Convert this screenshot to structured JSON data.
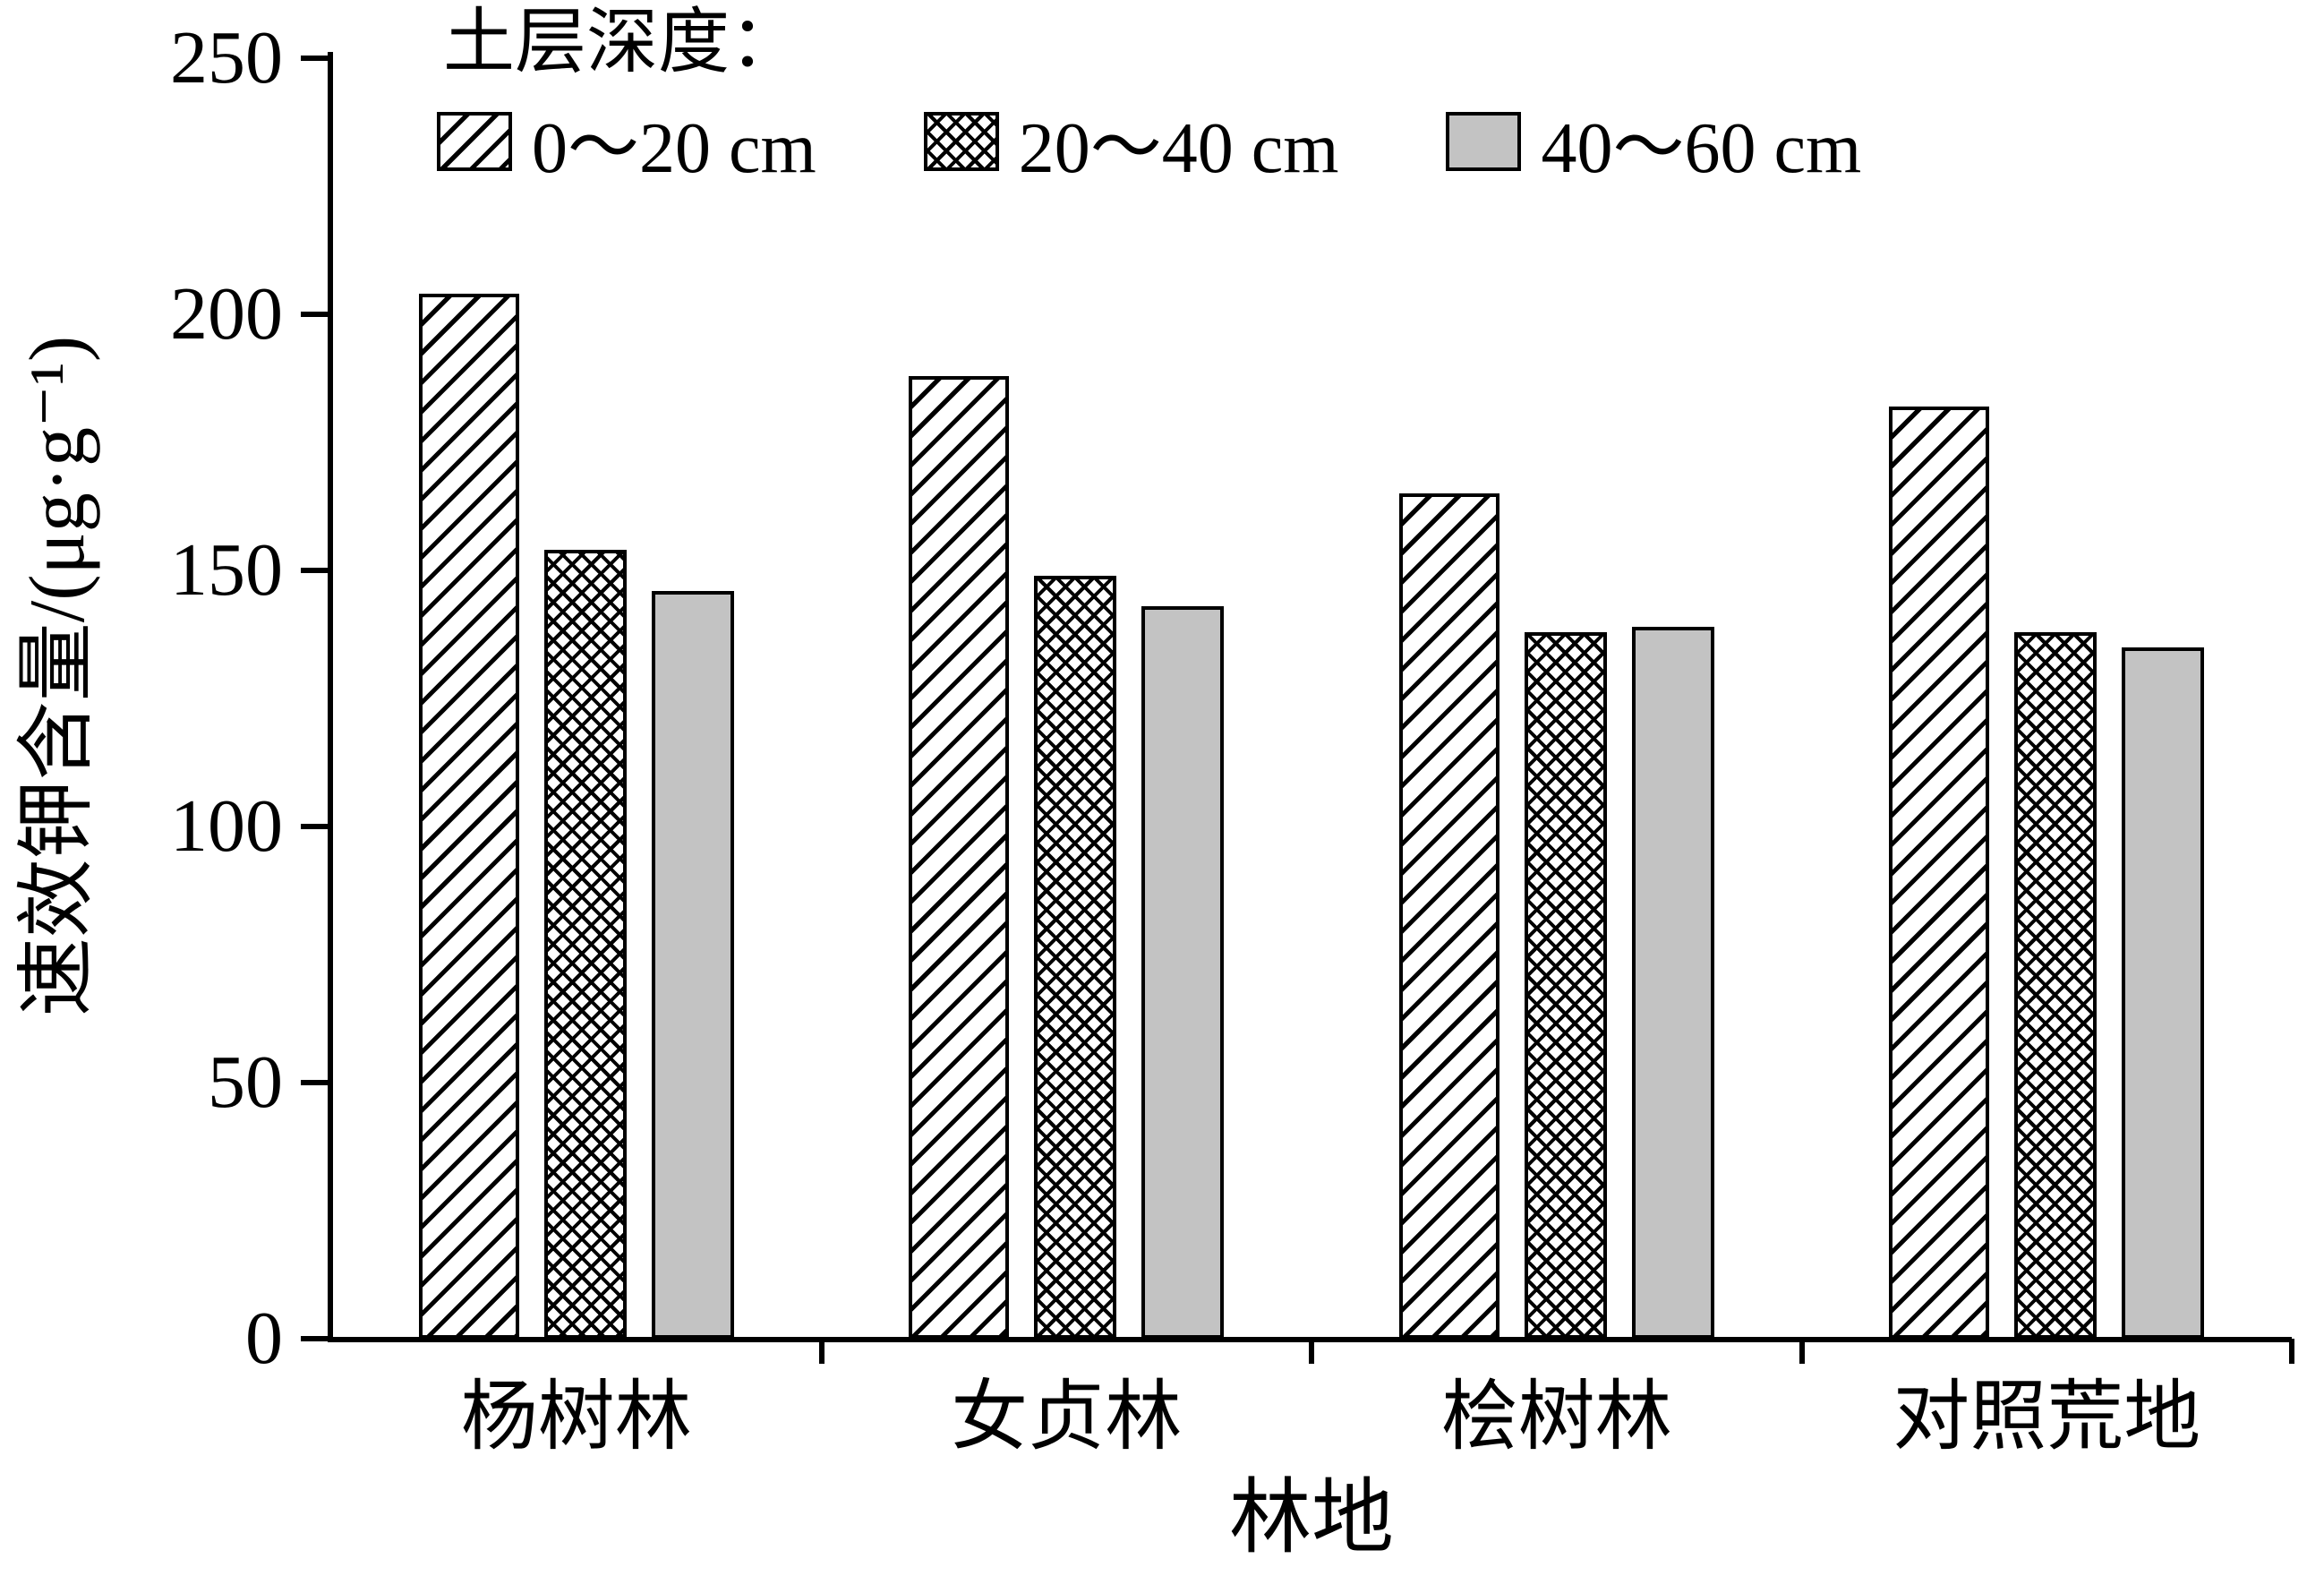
{
  "chart_data": {
    "type": "bar",
    "title": "",
    "legend_title": "土层深度：",
    "legend_position": "top",
    "grid": false,
    "categories": [
      "杨树林",
      "女贞林",
      "桧树林",
      "对照荒地"
    ],
    "series": [
      {
        "name": "0～20 cm",
        "pattern": "diagonal",
        "values": [
          204,
          188,
          165,
          182
        ]
      },
      {
        "name": "20～40 cm",
        "pattern": "crosshatch",
        "values": [
          154,
          149,
          138,
          138
        ]
      },
      {
        "name": "40～60 cm",
        "pattern": "solid",
        "values": [
          146,
          143,
          139,
          135
        ]
      }
    ],
    "xlabel": "林地",
    "ylabel": "速效钾含量/(μg·g⁻¹)",
    "ylim": [
      0,
      250
    ],
    "ytick_interval": 50,
    "ytick_labels": [
      "0",
      "50",
      "100",
      "150",
      "200",
      "250"
    ],
    "colors": {
      "bar_fill_gray": "#c3c3c3",
      "axis": "#000000",
      "background": "#ffffff"
    }
  }
}
